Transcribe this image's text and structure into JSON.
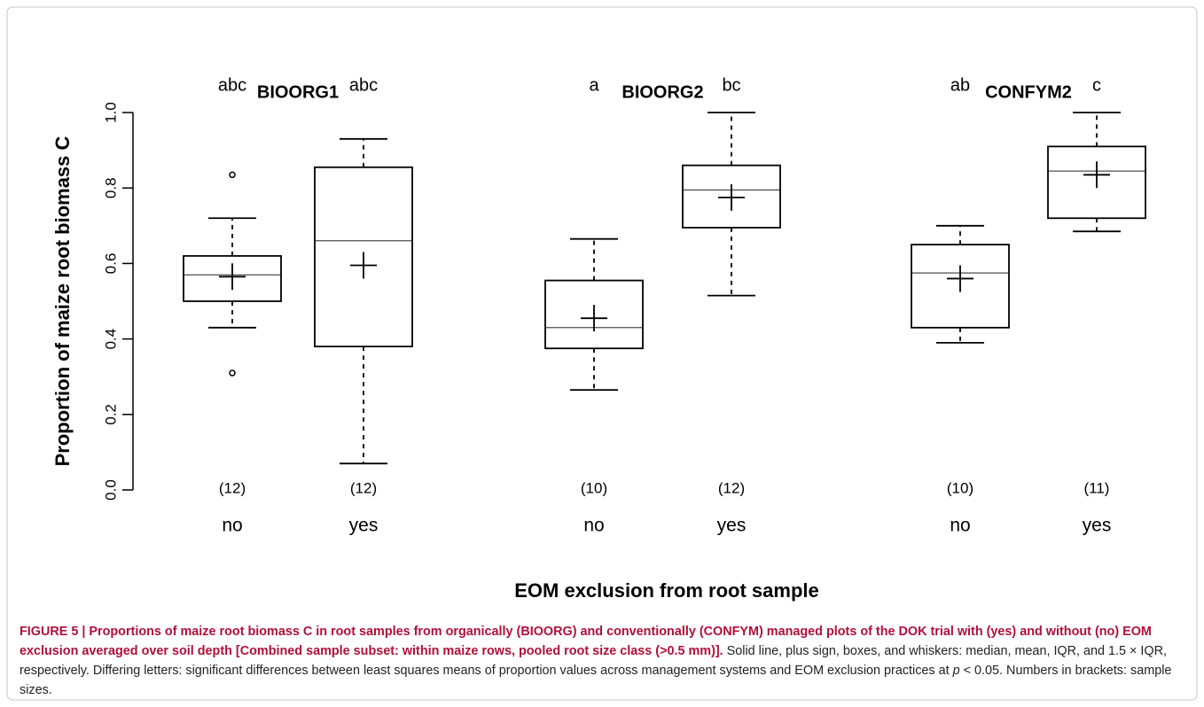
{
  "chart_data": {
    "type": "box",
    "ylabel": "Proportion of maize root biomass C",
    "xlabel": "EOM exclusion from root sample",
    "groups": [
      "BIOORG1",
      "BIOORG2",
      "CONFYM2"
    ],
    "categories": [
      "no",
      "yes",
      "no",
      "yes",
      "no",
      "yes"
    ],
    "letters": [
      "abc",
      "abc",
      "a",
      "bc",
      "ab",
      "c"
    ],
    "sample_sizes": [
      "(12)",
      "(12)",
      "(10)",
      "(12)",
      "(10)",
      "(11)"
    ],
    "color": "#000000",
    "ylim": [
      0,
      1
    ],
    "yticks": [
      {
        "value": 0,
        "label": "0.0"
      },
      0.2,
      0.4,
      0.6,
      0.8,
      {
        "value": 1,
        "label": "1.0"
      }
    ],
    "boxes": [
      {
        "whislo": 0.43,
        "q1": 0.5,
        "med": 0.57,
        "q3": 0.62,
        "whishi": 0.72,
        "mean": 0.565,
        "fliers": [
          0.31,
          0.835
        ]
      },
      {
        "whislo": 0.07,
        "q1": 0.38,
        "med": 0.66,
        "q3": 0.855,
        "whishi": 0.93,
        "mean": 0.595,
        "fliers": []
      },
      {
        "whislo": 0.265,
        "q1": 0.375,
        "med": 0.43,
        "q3": 0.555,
        "whishi": 0.665,
        "mean": 0.455,
        "fliers": []
      },
      {
        "whislo": 0.515,
        "q1": 0.695,
        "med": 0.795,
        "q3": 0.86,
        "whishi": 1.0,
        "mean": 0.775,
        "fliers": []
      },
      {
        "whislo": 0.39,
        "q1": 0.43,
        "med": 0.575,
        "q3": 0.65,
        "whishi": 0.7,
        "mean": 0.56,
        "fliers": []
      },
      {
        "whislo": 0.685,
        "q1": 0.72,
        "med": 0.845,
        "q3": 0.91,
        "whishi": 1.0,
        "mean": 0.835,
        "fliers": []
      }
    ]
  },
  "caption": {
    "bold": "FIGURE 5 | Proportions of maize root biomass C in root samples from organically (BIOORG) and conventionally (CONFYM) managed plots of the DOK trial with (yes) and without (no) EOM exclusion averaged over soil depth [Combined sample subset: within maize rows, pooled root size class (>0.5 mm)].",
    "text": " Solid line, plus sign, boxes, and whiskers: median, mean, IQR, and 1.5 × IQR, respectively. Differing letters: significant differences between least squares means of proportion values across management systems and EOM exclusion practices at ",
    "italic": "p",
    "text_end": " < 0.05. Numbers in brackets: sample sizes."
  }
}
